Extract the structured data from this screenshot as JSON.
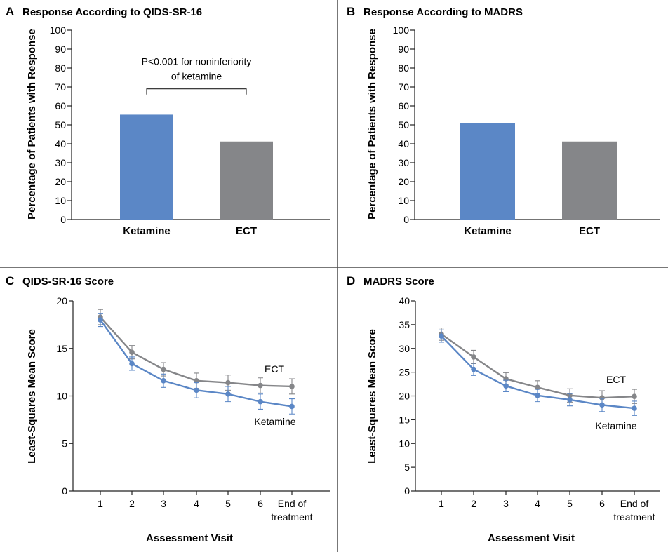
{
  "colors": {
    "ketamine": "#5b87c6",
    "ect": "#858689",
    "axis": "#222222",
    "divider": "#4a4a4a"
  },
  "chart_data": [
    {
      "panel": "A",
      "title": "Response According to QIDS-SR-16",
      "type": "bar",
      "categories": [
        "Ketamine",
        "ECT"
      ],
      "values": [
        55.4,
        41.2
      ],
      "ylabel": "Percentage of Patients with Response",
      "xlabel": "",
      "ylim": [
        0,
        100
      ],
      "yticks": [
        "0",
        "10",
        "20",
        "30",
        "40",
        "50",
        "60",
        "70",
        "80",
        "90",
        "100"
      ],
      "grid": false,
      "annotation": {
        "line1": "P<0.001 for noninferiority",
        "line2": "of ketamine"
      }
    },
    {
      "panel": "B",
      "title": "Response According to MADRS",
      "type": "bar",
      "categories": [
        "Ketamine",
        "ECT"
      ],
      "values": [
        50.8,
        41.2
      ],
      "ylabel": "Percentage of Patients with Response",
      "xlabel": "",
      "ylim": [
        0,
        100
      ],
      "yticks": [
        "0",
        "10",
        "20",
        "30",
        "40",
        "50",
        "60",
        "70",
        "80",
        "90",
        "100"
      ],
      "grid": false
    },
    {
      "panel": "C",
      "title": "QIDS-SR-16 Score",
      "type": "line",
      "x": [
        "1",
        "2",
        "3",
        "4",
        "5",
        "6",
        "End of treatment"
      ],
      "xtick_lines": [
        [
          "1"
        ],
        [
          "2"
        ],
        [
          "3"
        ],
        [
          "4"
        ],
        [
          "5"
        ],
        [
          "6"
        ],
        [
          "End of",
          "treatment"
        ]
      ],
      "ylabel": "Least-Squares Mean Score",
      "xlabel": "Assessment Visit",
      "ylim": [
        0,
        20
      ],
      "yticks": [
        "0",
        "5",
        "10",
        "15",
        "20"
      ],
      "grid": false,
      "series": [
        {
          "name": "ECT",
          "values": [
            18.3,
            14.6,
            12.8,
            11.6,
            11.4,
            11.1,
            11.0
          ],
          "err": [
            0.8,
            0.7,
            0.7,
            0.8,
            0.8,
            0.8,
            0.8
          ]
        },
        {
          "name": "Ketamine",
          "values": [
            18.0,
            13.4,
            11.6,
            10.6,
            10.2,
            9.4,
            8.9
          ],
          "err": [
            0.7,
            0.7,
            0.7,
            0.8,
            0.8,
            0.8,
            0.8
          ]
        }
      ]
    },
    {
      "panel": "D",
      "title": "MADRS Score",
      "type": "line",
      "x": [
        "1",
        "2",
        "3",
        "4",
        "5",
        "6",
        "End of treatment"
      ],
      "xtick_lines": [
        [
          "1"
        ],
        [
          "2"
        ],
        [
          "3"
        ],
        [
          "4"
        ],
        [
          "5"
        ],
        [
          "6"
        ],
        [
          "End of",
          "treatment"
        ]
      ],
      "ylabel": "Least-Squares Mean Score",
      "xlabel": "Assessment Visit",
      "ylim": [
        0,
        40
      ],
      "yticks": [
        "0",
        "5",
        "10",
        "15",
        "20",
        "25",
        "30",
        "35",
        "40"
      ],
      "grid": false,
      "series": [
        {
          "name": "ECT",
          "values": [
            33.0,
            28.2,
            23.6,
            21.8,
            20.1,
            19.6,
            19.9
          ],
          "err": [
            1.3,
            1.4,
            1.3,
            1.4,
            1.4,
            1.5,
            1.5
          ]
        },
        {
          "name": "Ketamine",
          "values": [
            32.6,
            25.6,
            22.1,
            20.1,
            19.2,
            18.1,
            17.4
          ],
          "err": [
            1.3,
            1.3,
            1.2,
            1.3,
            1.3,
            1.4,
            1.5
          ]
        }
      ]
    }
  ]
}
